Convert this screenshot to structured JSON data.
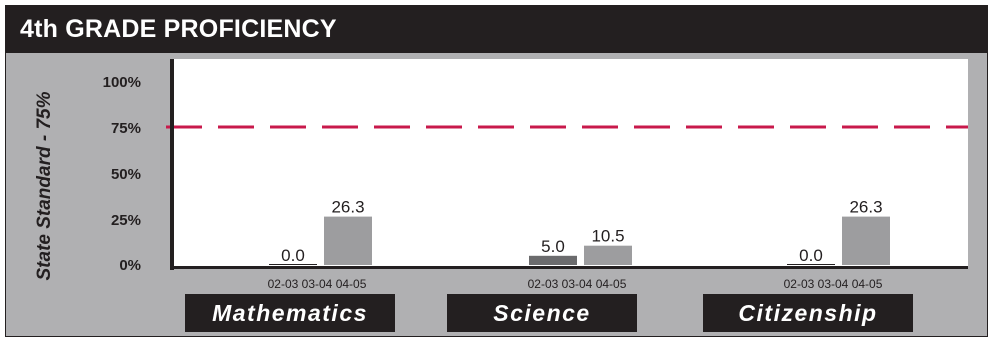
{
  "header": {
    "title": "4th GRADE PROFICIENCY"
  },
  "chart_data": {
    "type": "bar",
    "title": "4th GRADE PROFICIENCY",
    "ylabel": "State Standard - 75%",
    "ylim": [
      0,
      100
    ],
    "yticks": [
      "0%",
      "25%",
      "50%",
      "75%",
      "100%"
    ],
    "reference_line": {
      "value": 75,
      "color": "#c8194b"
    },
    "periods": [
      "02-03",
      "03-04",
      "04-05"
    ],
    "categories": [
      "Mathematics",
      "Science",
      "Citizenship"
    ],
    "series": [
      {
        "values": [
          null,
          null,
          null
        ],
        "color": "#4a4a4c"
      },
      {
        "values": [
          0.0,
          5.0,
          0.0
        ],
        "color": "#6b6b6d"
      },
      {
        "values": [
          26.3,
          10.5,
          26.3
        ],
        "color": "#9d9d9f"
      }
    ],
    "data_labels": [
      [
        null,
        "0.0",
        "26.3"
      ],
      [
        null,
        "5.0",
        "10.5"
      ],
      [
        null,
        "0.0",
        "26.3"
      ]
    ],
    "grid": false
  },
  "colors": {
    "frame_bg": "#b0b0b2",
    "header_bg": "#231f20",
    "plot_bg": "#ffffff",
    "text_dark": "#231f20"
  }
}
